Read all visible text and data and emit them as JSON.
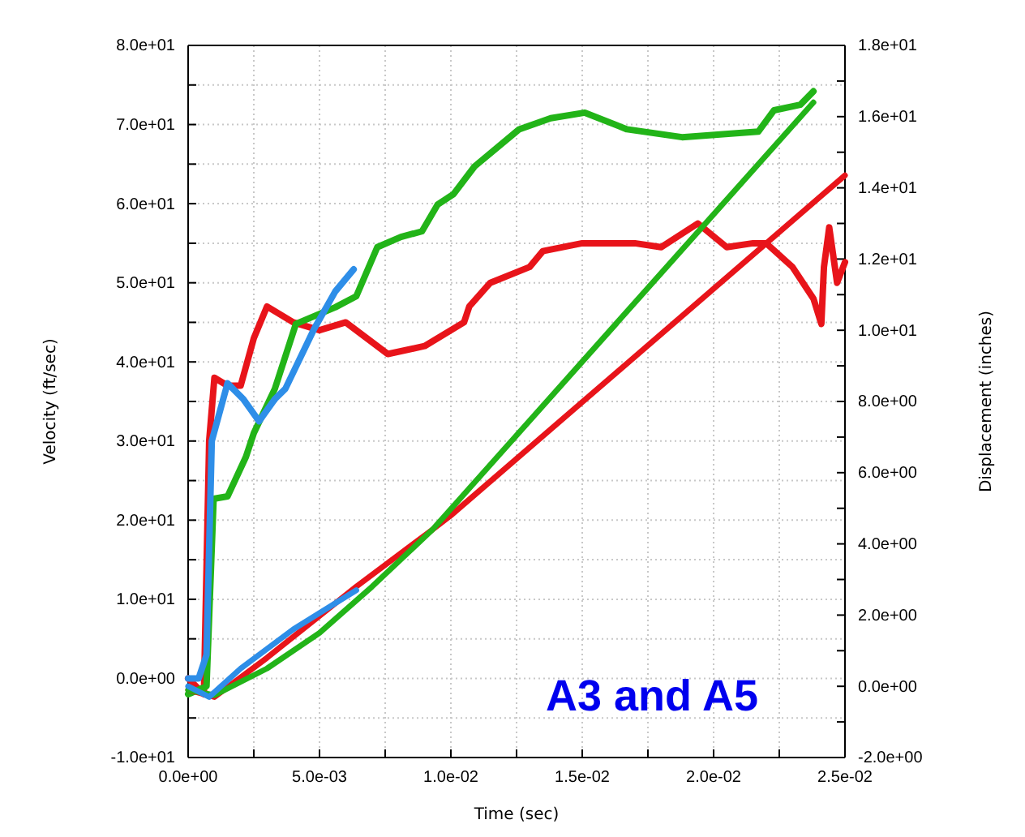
{
  "chart_data": {
    "type": "line",
    "xlabel": "Time (sec)",
    "ylabel": "Velocity (ft/sec)",
    "y2label": "Displacement (inches)",
    "annotations": [
      "A3 and A5"
    ],
    "xlim": [
      0,
      0.025
    ],
    "ylim": [
      -10,
      80
    ],
    "y2lim": [
      -2,
      18
    ],
    "xticks": [
      {
        "value": 0,
        "label": "0.0e+00"
      },
      {
        "value": 0.0025,
        "label": null
      },
      {
        "value": 0.005,
        "label": "5.0e-03"
      },
      {
        "value": 0.0075,
        "label": null
      },
      {
        "value": 0.01,
        "label": "1.0e-02"
      },
      {
        "value": 0.0125,
        "label": null
      },
      {
        "value": 0.015,
        "label": "1.5e-02"
      },
      {
        "value": 0.0175,
        "label": null
      },
      {
        "value": 0.02,
        "label": "2.0e-02"
      },
      {
        "value": 0.0225,
        "label": null
      },
      {
        "value": 0.025,
        "label": "2.5e-02"
      }
    ],
    "yticks": [
      {
        "value": -10,
        "label": "-1.0e+01"
      },
      {
        "value": -5,
        "label": null
      },
      {
        "value": 0,
        "label": "0.0e+00"
      },
      {
        "value": 5,
        "label": null
      },
      {
        "value": 10,
        "label": "1.0e+01"
      },
      {
        "value": 15,
        "label": null
      },
      {
        "value": 20,
        "label": "2.0e+01"
      },
      {
        "value": 25,
        "label": null
      },
      {
        "value": 30,
        "label": "3.0e+01"
      },
      {
        "value": 35,
        "label": null
      },
      {
        "value": 40,
        "label": "4.0e+01"
      },
      {
        "value": 45,
        "label": null
      },
      {
        "value": 50,
        "label": "5.0e+01"
      },
      {
        "value": 55,
        "label": null
      },
      {
        "value": 60,
        "label": "6.0e+01"
      },
      {
        "value": 65,
        "label": null
      },
      {
        "value": 70,
        "label": "7.0e+01"
      },
      {
        "value": 75,
        "label": null
      },
      {
        "value": 80,
        "label": "8.0e+01"
      }
    ],
    "y2ticks": [
      {
        "value": -2,
        "label": "-2.0e+00"
      },
      {
        "value": -1,
        "label": null
      },
      {
        "value": 0,
        "label": "0.0e+00"
      },
      {
        "value": 1,
        "label": null
      },
      {
        "value": 2,
        "label": "2.0e+00"
      },
      {
        "value": 3,
        "label": null
      },
      {
        "value": 4,
        "label": "4.0e+00"
      },
      {
        "value": 5,
        "label": null
      },
      {
        "value": 6,
        "label": "6.0e+00"
      },
      {
        "value": 7,
        "label": null
      },
      {
        "value": 8,
        "label": "8.0e+00"
      },
      {
        "value": 9,
        "label": null
      },
      {
        "value": 10,
        "label": "1.0e+01"
      },
      {
        "value": 11,
        "label": null
      },
      {
        "value": 12,
        "label": "1.2e+01"
      },
      {
        "value": 13,
        "label": null
      },
      {
        "value": 14,
        "label": "1.4e+01"
      },
      {
        "value": 15,
        "label": null
      },
      {
        "value": 16,
        "label": "1.6e+01"
      },
      {
        "value": 17,
        "label": null
      },
      {
        "value": 18,
        "label": "1.8e+01"
      }
    ],
    "grid": true,
    "marker": "none",
    "line_style": "solid",
    "series": [
      {
        "color": "#e8141a",
        "x": [
          0,
          0.0006,
          0.0008,
          0.001,
          0.0015,
          0.002,
          0.0025,
          0.003,
          0.004,
          0.005,
          0.006,
          0.0076,
          0.009,
          0.0105,
          0.0107,
          0.0115,
          0.013,
          0.0135,
          0.015,
          0.017,
          0.018,
          0.0194,
          0.0205,
          0.0215,
          0.022,
          0.023,
          0.0238,
          0.0241,
          0.0242,
          0.0244,
          0.0247,
          0.025
        ],
        "values": [
          0,
          -2,
          30,
          38,
          37,
          37,
          43,
          47,
          45,
          44,
          45,
          41,
          42,
          45,
          47,
          50,
          52,
          54,
          55,
          55,
          54.5,
          57.5,
          54.5,
          55,
          55,
          52,
          48,
          44.8,
          52,
          57,
          50,
          52.6
        ]
      },
      {
        "color": "#22b418",
        "x": [
          0,
          0.0007,
          0.00097,
          0.0015,
          0.0022,
          0.0025,
          0.0033,
          0.0041,
          0.0056,
          0.0064,
          0.0072,
          0.0081,
          0.0089,
          0.0095,
          0.0101,
          0.0109,
          0.0126,
          0.0138,
          0.0151,
          0.0167,
          0.0188,
          0.0217,
          0.0223,
          0.0233,
          0.0238
        ],
        "values": [
          -2,
          -1,
          22.7,
          23,
          28,
          31,
          36.6,
          44.8,
          46.9,
          48.3,
          54.5,
          55.8,
          56.5,
          59.9,
          61.2,
          64.7,
          69.4,
          70.8,
          71.5,
          69.4,
          68.4,
          69.1,
          71.8,
          72.5,
          74.2
        ]
      },
      {
        "color": "#2e8ee8",
        "x": [
          0,
          0.0004,
          0.0007,
          0.0009,
          0.0015,
          0.0021,
          0.0027,
          0.0033,
          0.0037,
          0.0048,
          0.0056,
          0.0063
        ],
        "values": [
          0,
          0,
          3,
          30,
          37.3,
          35.3,
          32.5,
          35.3,
          36.6,
          44.2,
          48.9,
          51.7
        ]
      },
      {
        "color": "#e8141a",
        "axis": "y2",
        "x": [
          0,
          0.001,
          0.003,
          0.0064,
          0.0093,
          0.01,
          0.025
        ],
        "values": [
          -0.1,
          -0.3,
          0.8,
          2.8,
          4.4,
          4.8,
          14.35
        ]
      },
      {
        "color": "#22b418",
        "axis": "y2",
        "x": [
          0,
          0.001,
          0.003,
          0.005,
          0.007,
          0.0093,
          0.0238
        ],
        "values": [
          -0.1,
          -0.25,
          0.5,
          1.5,
          2.8,
          4.4,
          16.4
        ]
      },
      {
        "color": "#2e8ee8",
        "axis": "y2",
        "x": [
          0,
          0.0008,
          0.002,
          0.004,
          0.0064
        ],
        "values": [
          0,
          -0.3,
          0.5,
          1.6,
          2.7
        ]
      }
    ]
  }
}
